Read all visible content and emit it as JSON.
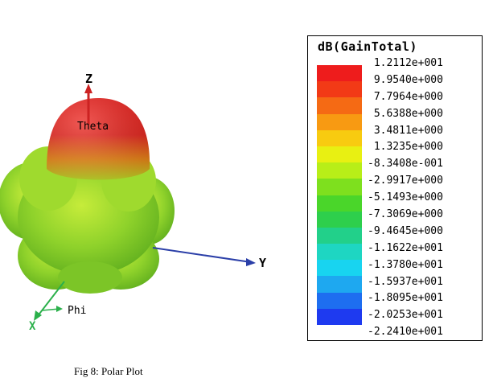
{
  "plot": {
    "axes": {
      "z": "Z",
      "y": "Y",
      "x": "X",
      "theta": "Theta",
      "phi": "Phi"
    },
    "colors": {
      "lobe_top": "#e8221b",
      "lobe_mid": "#f3a11a",
      "body": "#8fd22b",
      "z_axis": "#cc2222",
      "y_axis": "#2b3fa8",
      "x_axis": "#2bb04b"
    }
  },
  "legend": {
    "title": "dB(GainTotal)",
    "labels": [
      "1.2112e+001",
      "9.9540e+000",
      "7.7964e+000",
      "5.6388e+000",
      "3.4811e+000",
      "1.3235e+000",
      "-8.3408e-001",
      "-2.9917e+000",
      "-5.1493e+000",
      "-7.3069e+000",
      "-9.4645e+000",
      "-1.1622e+001",
      "-1.3780e+001",
      "-1.5937e+001",
      "-1.8095e+001",
      "-2.0253e+001",
      "-2.2410e+001"
    ],
    "colors": [
      "#ee1c1c",
      "#f23a16",
      "#f56a14",
      "#f89a12",
      "#f8cb10",
      "#e8f012",
      "#b8ee18",
      "#7ee01e",
      "#4ad62a",
      "#2ecf4c",
      "#22d08a",
      "#1ed6c2",
      "#18d4f0",
      "#1ea8f0",
      "#1e6ef0",
      "#1e3af0"
    ]
  },
  "caption": "Fig 8: Polar Plot"
}
